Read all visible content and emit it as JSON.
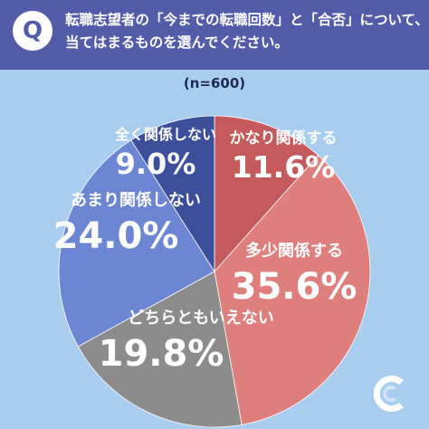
{
  "header": {
    "badge": "Q",
    "question_line1": "転職志望者の「今までの転職回数」と「合否」について、",
    "question_line2": "当てはまるものを選んでください。"
  },
  "sample_note": "(n=600)",
  "colors": {
    "header_bg": "#525ca9",
    "page_bg": "#a9cdef",
    "slice_very": "#c45a5b",
    "slice_somewhat": "#de7f7d",
    "slice_neither": "#8c8c8c",
    "slice_little": "#6c86d3",
    "slice_none": "#3d4f9a"
  },
  "chart_data": {
    "type": "pie",
    "unit": "%",
    "n": 600,
    "slices": [
      {
        "label": "かなり関係する",
        "value": 11.6,
        "display": "11.6%"
      },
      {
        "label": "多少関係する",
        "value": 35.6,
        "display": "35.6%"
      },
      {
        "label": "どちらともいえない",
        "value": 19.8,
        "display": "19.8%"
      },
      {
        "label": "あまり関係しない",
        "value": 24.0,
        "display": "24.0%"
      },
      {
        "label": "全く関係しない",
        "value": 9.0,
        "display": "9.0%"
      }
    ]
  },
  "logo_icon": "crescent-logo-icon"
}
